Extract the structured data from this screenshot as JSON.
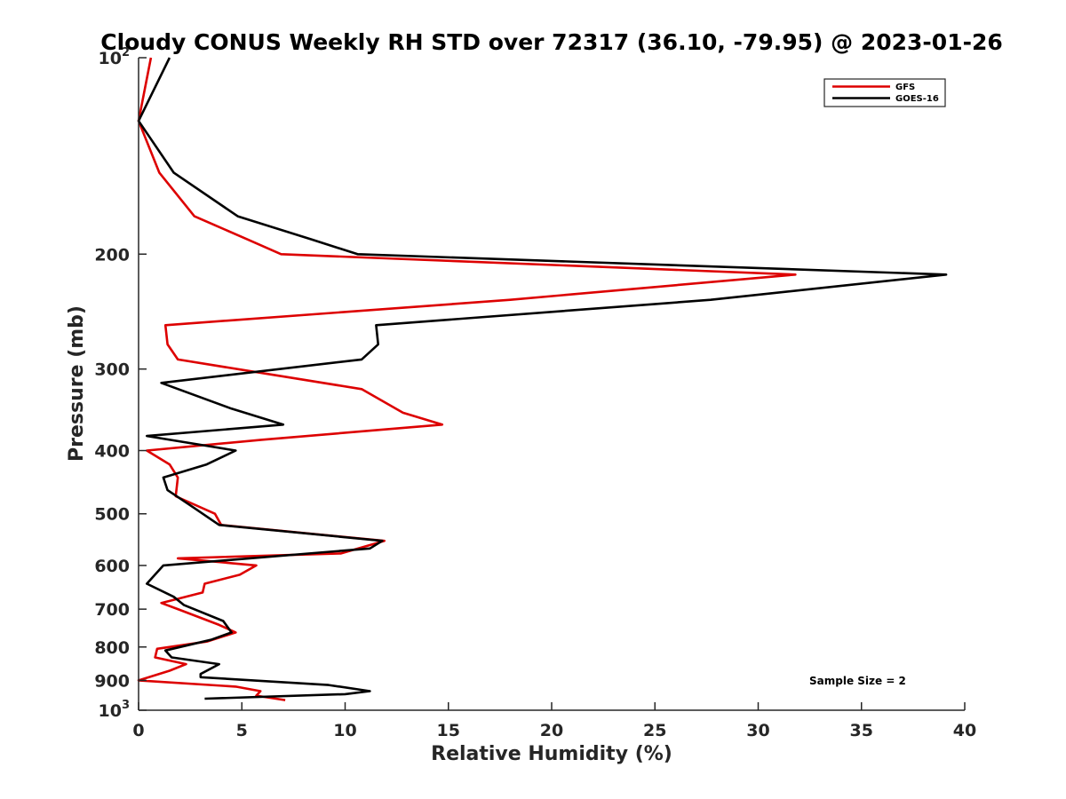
{
  "chart_data": {
    "type": "line",
    "title": "Cloudy CONUS Weekly RH STD over 72317 (36.10, -79.95) @ 2023-01-26",
    "xlabel": "Relative Humidity (%)",
    "ylabel": "Pressure (mb)",
    "xlim": [
      0,
      40
    ],
    "ylim": [
      100,
      1000
    ],
    "y_scale": "log",
    "y_reversed": true,
    "grid": false,
    "x_ticks": [
      0,
      5,
      10,
      15,
      20,
      25,
      30,
      35,
      40
    ],
    "x_tick_labels": [
      "0",
      "5",
      "10",
      "15",
      "20",
      "25",
      "30",
      "35",
      "40"
    ],
    "y_ticks": [
      100,
      200,
      300,
      400,
      500,
      600,
      700,
      800,
      900,
      1000
    ],
    "y_tick_labels": [
      {
        "base": "10",
        "sup": "2"
      },
      {
        "base": "200",
        "sup": ""
      },
      {
        "base": "300",
        "sup": ""
      },
      {
        "base": "400",
        "sup": ""
      },
      {
        "base": "500",
        "sup": ""
      },
      {
        "base": "600",
        "sup": ""
      },
      {
        "base": "700",
        "sup": ""
      },
      {
        "base": "800",
        "sup": ""
      },
      {
        "base": "900",
        "sup": ""
      },
      {
        "base": "10",
        "sup": "3"
      }
    ],
    "legend_position": "top-right",
    "series": [
      {
        "name": "GFS",
        "color": "#dd0000",
        "points": [
          [
            0.6,
            100
          ],
          [
            0.0,
            125
          ],
          [
            1.0,
            150
          ],
          [
            2.7,
            175
          ],
          [
            5.3,
            190
          ],
          [
            6.9,
            200
          ],
          [
            31.8,
            215
          ],
          [
            18.0,
            235
          ],
          [
            1.3,
            257
          ],
          [
            1.4,
            275
          ],
          [
            1.9,
            290
          ],
          [
            10.8,
            322
          ],
          [
            12.8,
            350
          ],
          [
            14.7,
            365
          ],
          [
            6.0,
            385
          ],
          [
            0.4,
            400
          ],
          [
            1.5,
            420
          ],
          [
            1.9,
            440
          ],
          [
            1.8,
            470
          ],
          [
            3.7,
            500
          ],
          [
            4.0,
            520
          ],
          [
            11.9,
            550
          ],
          [
            9.8,
            575
          ],
          [
            1.9,
            585
          ],
          [
            5.7,
            600
          ],
          [
            4.9,
            620
          ],
          [
            3.2,
            640
          ],
          [
            3.1,
            660
          ],
          [
            1.1,
            685
          ],
          [
            1.9,
            700
          ],
          [
            3.9,
            740
          ],
          [
            4.7,
            760
          ],
          [
            3.3,
            785
          ],
          [
            0.9,
            805
          ],
          [
            0.8,
            830
          ],
          [
            2.3,
            850
          ],
          [
            1.5,
            870
          ],
          [
            0.0,
            900
          ],
          [
            4.7,
            920
          ],
          [
            5.9,
            935
          ],
          [
            5.7,
            950
          ],
          [
            7.1,
            965
          ]
        ]
      },
      {
        "name": "GOES-16",
        "color": "#000000",
        "points": [
          [
            1.5,
            100
          ],
          [
            0.0,
            125
          ],
          [
            1.7,
            150
          ],
          [
            4.8,
            175
          ],
          [
            8.4,
            190
          ],
          [
            10.6,
            200
          ],
          [
            39.1,
            215
          ],
          [
            27.7,
            235
          ],
          [
            11.5,
            257
          ],
          [
            11.6,
            275
          ],
          [
            10.8,
            290
          ],
          [
            1.1,
            315
          ],
          [
            4.5,
            345
          ],
          [
            7.0,
            365
          ],
          [
            0.4,
            380
          ],
          [
            4.7,
            400
          ],
          [
            3.3,
            420
          ],
          [
            1.2,
            440
          ],
          [
            1.4,
            460
          ],
          [
            2.7,
            490
          ],
          [
            3.9,
            520
          ],
          [
            11.8,
            550
          ],
          [
            11.2,
            565
          ],
          [
            1.2,
            600
          ],
          [
            0.4,
            640
          ],
          [
            1.7,
            670
          ],
          [
            2.2,
            690
          ],
          [
            4.1,
            730
          ],
          [
            4.5,
            760
          ],
          [
            3.5,
            780
          ],
          [
            1.3,
            810
          ],
          [
            1.6,
            830
          ],
          [
            3.9,
            850
          ],
          [
            3.0,
            880
          ],
          [
            3.0,
            890
          ],
          [
            9.2,
            915
          ],
          [
            11.2,
            935
          ],
          [
            10.0,
            945
          ],
          [
            3.2,
            960
          ]
        ]
      }
    ],
    "annotation": "Sample Size = 2"
  }
}
